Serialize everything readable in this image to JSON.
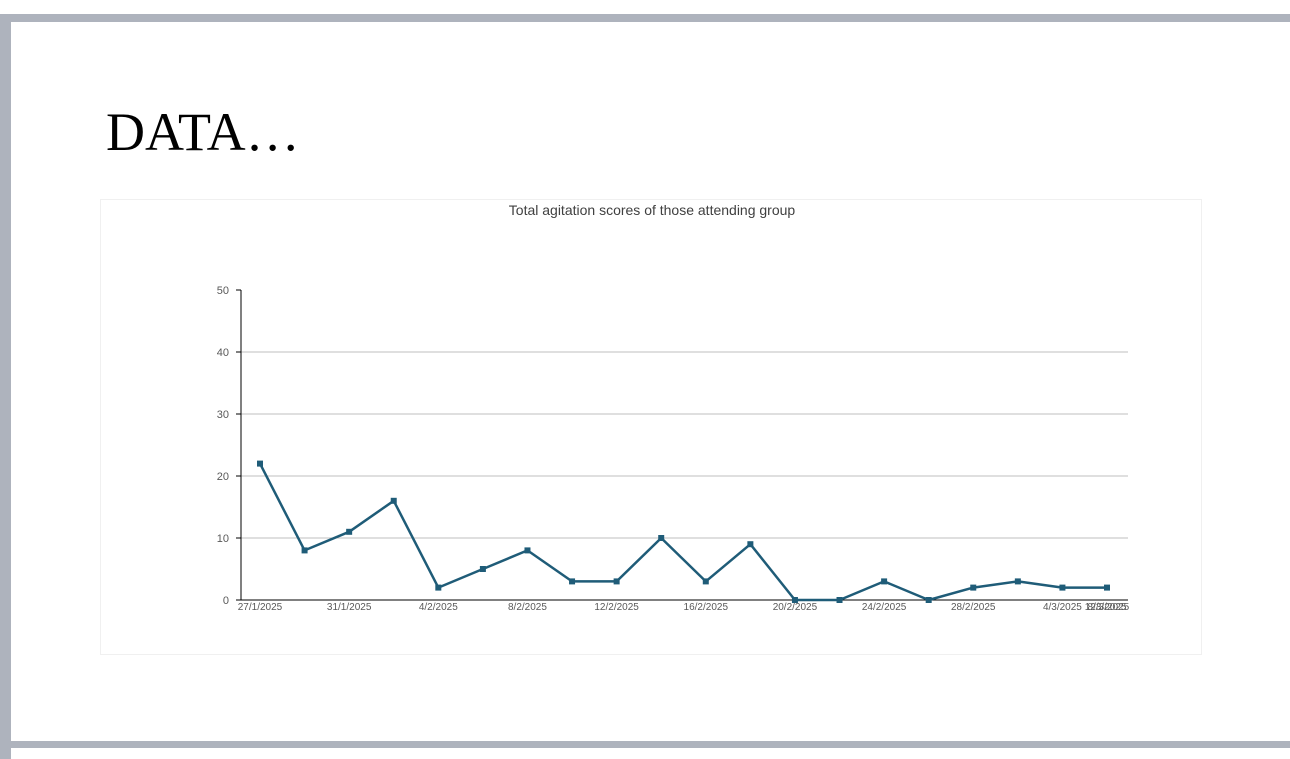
{
  "slide": {
    "title": "DATA…"
  },
  "colors": {
    "frame": "#aeb3bd",
    "series": "#1f5c78",
    "grid": "#bfbfbf",
    "axis": "#000000"
  },
  "chart_data": {
    "type": "line",
    "title": "Total agitation scores of those attending group",
    "xlabel": "",
    "ylabel": "",
    "ylim": [
      0,
      50
    ],
    "yticks": [
      0,
      10,
      20,
      30,
      40,
      50
    ],
    "grid": true,
    "legend": "none",
    "x_tick_labels": [
      "27/1/2025",
      "31/1/2025",
      "4/2/2025",
      "8/2/2025",
      "12/2/2025",
      "16/2/2025",
      "20/2/2025",
      "24/2/2025",
      "28/2/2025",
      "4/3/2025",
      "8/3/2025",
      "12/3/2025"
    ],
    "series": [
      {
        "values": [
          22,
          8,
          11,
          16,
          2,
          5,
          8,
          3,
          3,
          10,
          3,
          9,
          0,
          0,
          3,
          0,
          2,
          3,
          2,
          2
        ]
      }
    ]
  }
}
